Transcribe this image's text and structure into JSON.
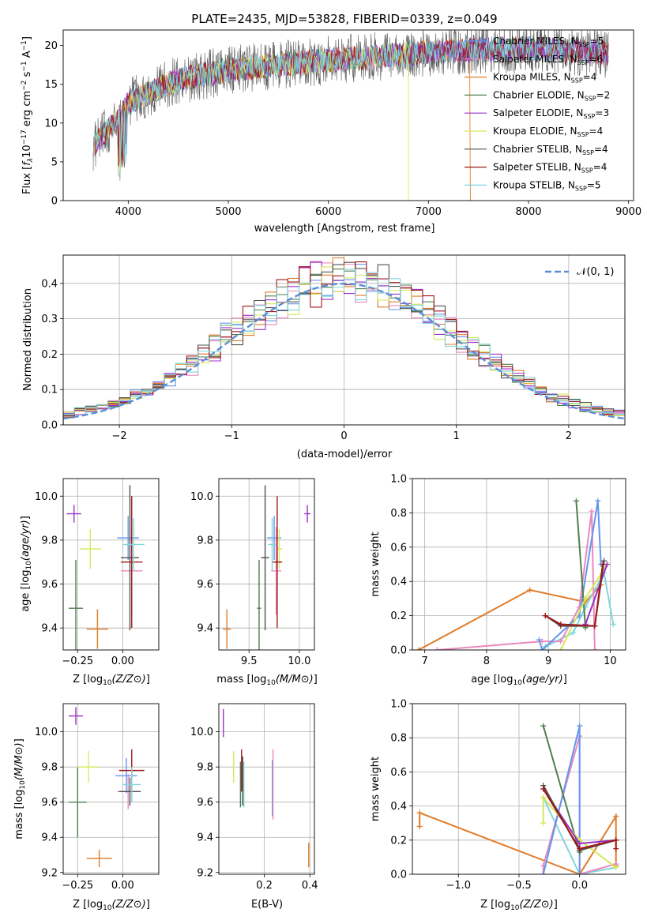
{
  "title": "PLATE=2435, MJD=53828, FIBERID=0339, z=0.049",
  "colors": {
    "chabrier_miles": "#6495ed",
    "salpeter_miles": "#e889c0",
    "kroupa_miles": "#e07b28",
    "chabrier_elodie": "#4f7f4f",
    "salpeter_elodie": "#9b30c8",
    "kroupa_elodie": "#d6e85a",
    "chabrier_stelib": "#505050",
    "salpeter_stelib": "#a01818",
    "kroupa_stelib": "#7fd6dc",
    "normal": "#5b8ed6"
  },
  "legend": [
    {
      "prefix": "Chabrier MILES, N",
      "sub": "SSP",
      "suffix": "=5",
      "color_key": "chabrier_miles"
    },
    {
      "prefix": "Salpeter MILES, N",
      "sub": "SSP",
      "suffix": "=6",
      "color_key": "salpeter_miles"
    },
    {
      "prefix": "Kroupa MILES, N",
      "sub": "SSP",
      "suffix": "=4",
      "color_key": "kroupa_miles"
    },
    {
      "prefix": "Chabrier ELODIE, N",
      "sub": "SSP",
      "suffix": "=2",
      "color_key": "chabrier_elodie"
    },
    {
      "prefix": "Salpeter ELODIE, N",
      "sub": "SSP",
      "suffix": "=3",
      "color_key": "salpeter_elodie"
    },
    {
      "prefix": "Kroupa ELODIE, N",
      "sub": "SSP",
      "suffix": "=4",
      "color_key": "kroupa_elodie"
    },
    {
      "prefix": "Chabrier STELIB, N",
      "sub": "SSP",
      "suffix": "=4",
      "color_key": "chabrier_stelib"
    },
    {
      "prefix": "Salpeter STELIB, N",
      "sub": "SSP",
      "suffix": "=4",
      "color_key": "salpeter_stelib"
    },
    {
      "prefix": "Kroupa STELIB, N",
      "sub": "SSP",
      "suffix": "=5",
      "color_key": "kroupa_stelib"
    }
  ],
  "chart_data": [
    {
      "id": "spectrum",
      "type": "line",
      "xlabel": "wavelength [Angstrom, rest frame]",
      "ylabel": "Flux [f_λ 10^-17 erg cm^-2 s^-1 A^-1]",
      "xlim": [
        3350,
        9050
      ],
      "ylim": [
        0,
        22
      ],
      "xticks": [
        4000,
        5000,
        6000,
        7000,
        8000,
        9000
      ],
      "yticks": [
        0,
        5,
        10,
        15,
        20
      ],
      "data_range": [
        3650,
        8800
      ],
      "continuum": [
        [
          3650,
          7.0
        ],
        [
          3900,
          10.5
        ],
        [
          4000,
          12.5
        ],
        [
          4300,
          14.5
        ],
        [
          4500,
          15.6
        ],
        [
          5000,
          16.8
        ],
        [
          5500,
          17.5
        ],
        [
          6000,
          18.1
        ],
        [
          6500,
          18.6
        ],
        [
          7000,
          19.1
        ],
        [
          7500,
          19.5
        ],
        [
          8000,
          19.6
        ],
        [
          8500,
          19.3
        ],
        [
          8800,
          19.0
        ]
      ],
      "dropouts": [
        {
          "color_key": "kroupa_elodie",
          "x": 6800
        },
        {
          "color_key": "kroupa_miles",
          "x": 7420
        }
      ],
      "grid": false,
      "legend_position": "upper right"
    },
    {
      "id": "residuals",
      "type": "histogram",
      "xlabel": "(data-model)/error",
      "ylabel": "Normed distribution",
      "xlim": [
        -2.5,
        2.5
      ],
      "ylim": [
        0,
        0.48
      ],
      "xticks": [
        -2,
        -1,
        0,
        1,
        2
      ],
      "yticks": [
        0.0,
        0.1,
        0.2,
        0.3,
        0.4
      ],
      "bin_width": 0.1,
      "overlay": {
        "name": "N(0,1)",
        "mean": 0,
        "sigma": 1
      },
      "grid": true,
      "legend_position": "upper right"
    },
    {
      "id": "age_vs_z",
      "type": "errorbar",
      "xlabel": "Z [log10(Z/Z⊙)]",
      "ylabel": "age [log10(age/yr)]",
      "xlim": [
        -0.33,
        0.2
      ],
      "ylim": [
        9.3,
        10.08
      ],
      "xticks": [
        -0.25,
        0.0
      ],
      "yticks": [
        9.4,
        9.6,
        9.8,
        10.0
      ],
      "points": [
        {
          "color_key": "chabrier_miles",
          "x": 0.03,
          "xerr": 0.06,
          "y": 9.81,
          "yerr": 0.1
        },
        {
          "color_key": "salpeter_miles",
          "x": 0.05,
          "xerr": 0.06,
          "y": 9.66,
          "yerr": 0.2
        },
        {
          "color_key": "kroupa_miles",
          "x": -0.14,
          "xerr": 0.06,
          "y": 9.395,
          "yerr": 0.09
        },
        {
          "color_key": "chabrier_elodie",
          "x": -0.26,
          "xerr": 0.04,
          "y": 9.49,
          "yerr": 0.22
        },
        {
          "color_key": "salpeter_elodie",
          "x": -0.27,
          "xerr": 0.04,
          "y": 9.92,
          "yerr": 0.04
        },
        {
          "color_key": "kroupa_elodie",
          "x": -0.18,
          "xerr": 0.06,
          "y": 9.76,
          "yerr": 0.09
        },
        {
          "color_key": "chabrier_stelib",
          "x": 0.04,
          "xerr": 0.05,
          "y": 9.72,
          "yerr": 0.33
        },
        {
          "color_key": "salpeter_stelib",
          "x": 0.05,
          "xerr": 0.06,
          "y": 9.7,
          "yerr": 0.3
        },
        {
          "color_key": "kroupa_stelib",
          "x": 0.06,
          "xerr": 0.06,
          "y": 9.78,
          "yerr": 0.12
        }
      ]
    },
    {
      "id": "age_vs_mass",
      "type": "errorbar",
      "xlabel": "mass [log10(M/M⊙)]",
      "xlim": [
        9.2,
        10.15
      ],
      "ylim": [
        9.3,
        10.08
      ],
      "xticks": [
        9.5,
        10.0
      ],
      "yticks": [
        9.4,
        9.6,
        9.8,
        10.0
      ],
      "points": [
        {
          "color_key": "chabrier_miles",
          "x": 9.75,
          "xerr": 0.07,
          "y": 9.81,
          "yerr": 0.1
        },
        {
          "color_key": "salpeter_miles",
          "x": 9.77,
          "xerr": 0.05,
          "y": 9.66,
          "yerr": 0.2
        },
        {
          "color_key": "kroupa_miles",
          "x": 9.28,
          "xerr": 0.04,
          "y": 9.395,
          "yerr": 0.09
        },
        {
          "color_key": "chabrier_elodie",
          "x": 9.6,
          "xerr": 0.02,
          "y": 9.49,
          "yerr": 0.22
        },
        {
          "color_key": "salpeter_elodie",
          "x": 10.08,
          "xerr": 0.03,
          "y": 9.92,
          "yerr": 0.04
        },
        {
          "color_key": "kroupa_elodie",
          "x": 9.8,
          "xerr": 0.03,
          "y": 9.76,
          "yerr": 0.09
        },
        {
          "color_key": "chabrier_stelib",
          "x": 9.66,
          "xerr": 0.04,
          "y": 9.72,
          "yerr": 0.33
        },
        {
          "color_key": "salpeter_stelib",
          "x": 9.78,
          "xerr": 0.05,
          "y": 9.7,
          "yerr": 0.3
        },
        {
          "color_key": "kroupa_stelib",
          "x": 9.73,
          "xerr": 0.04,
          "y": 9.78,
          "yerr": 0.12
        }
      ]
    },
    {
      "id": "massweight_vs_age",
      "type": "line",
      "xlabel": "age [log10(age/yr)]",
      "ylabel": "mass weight",
      "xlim": [
        6.8,
        10.25
      ],
      "ylim": [
        0,
        1.0
      ],
      "xticks": [
        7,
        8,
        9,
        10
      ],
      "yticks": [
        0.0,
        0.2,
        0.4,
        0.6,
        0.8,
        1.0
      ],
      "series": [
        {
          "color_key": "kroupa_miles",
          "x": [
            6.9,
            8.7,
            9.6,
            9.85
          ],
          "y": [
            0.0,
            0.35,
            0.28,
            0.38
          ]
        },
        {
          "color_key": "kroupa_stelib",
          "x": [
            8.95,
            9.4,
            9.6,
            9.9,
            10.05
          ],
          "y": [
            0.02,
            0.1,
            0.25,
            0.45,
            0.15
          ]
        },
        {
          "color_key": "salpeter_miles",
          "x": [
            7.2,
            8.9,
            9.2,
            9.5,
            9.7,
            9.75
          ],
          "y": [
            0.0,
            0.05,
            0.05,
            0.25,
            0.81,
            0.0
          ]
        },
        {
          "color_key": "chabrier_miles",
          "x": [
            8.85,
            8.9,
            9.5,
            9.8,
            9.85
          ],
          "y": [
            0.06,
            0.0,
            0.2,
            0.87,
            0.5
          ]
        },
        {
          "color_key": "chabrier_elodie",
          "x": [
            9.45,
            9.6
          ],
          "y": [
            0.87,
            0.13
          ]
        },
        {
          "color_key": "kroupa_elodie",
          "x": [
            9.2,
            9.6,
            9.95
          ],
          "y": [
            0.0,
            0.3,
            0.5
          ]
        },
        {
          "color_key": "salpeter_elodie",
          "x": [
            9.6,
            9.95
          ],
          "y": [
            0.15,
            0.5
          ]
        },
        {
          "color_key": "chabrier_stelib",
          "x": [
            8.95,
            9.2,
            9.75,
            9.9
          ],
          "y": [
            0.2,
            0.14,
            0.14,
            0.52
          ]
        },
        {
          "color_key": "salpeter_stelib",
          "x": [
            8.95,
            9.2,
            9.75,
            9.88
          ],
          "y": [
            0.2,
            0.15,
            0.14,
            0.5
          ]
        }
      ]
    },
    {
      "id": "mass_vs_z",
      "type": "errorbar",
      "xlabel": "Z [log10(Z/Z⊙)]",
      "ylabel": "mass [log10(M/M⊙)]",
      "xlim": [
        -0.33,
        0.2
      ],
      "ylim": [
        9.19,
        10.16
      ],
      "xticks": [
        -0.25,
        0.0
      ],
      "yticks": [
        9.2,
        9.4,
        9.6,
        9.8,
        10.0
      ],
      "points": [
        {
          "color_key": "chabrier_miles",
          "x": 0.02,
          "xerr": 0.06,
          "y": 9.75,
          "yerr": 0.1
        },
        {
          "color_key": "salpeter_miles",
          "x": 0.03,
          "xerr": 0.06,
          "y": 9.66,
          "yerr": 0.1
        },
        {
          "color_key": "kroupa_miles",
          "x": -0.13,
          "xerr": 0.07,
          "y": 9.28,
          "yerr": 0.05
        },
        {
          "color_key": "chabrier_elodie",
          "x": -0.25,
          "xerr": 0.05,
          "y": 9.6,
          "yerr": 0.2
        },
        {
          "color_key": "salpeter_elodie",
          "x": -0.26,
          "xerr": 0.04,
          "y": 10.09,
          "yerr": 0.05
        },
        {
          "color_key": "kroupa_elodie",
          "x": -0.19,
          "xerr": 0.06,
          "y": 9.8,
          "yerr": 0.09
        },
        {
          "color_key": "chabrier_stelib",
          "x": 0.04,
          "xerr": 0.06,
          "y": 9.66,
          "yerr": 0.08
        },
        {
          "color_key": "salpeter_stelib",
          "x": 0.05,
          "xerr": 0.07,
          "y": 9.78,
          "yerr": 0.12
        },
        {
          "color_key": "kroupa_stelib",
          "x": 0.05,
          "xerr": 0.05,
          "y": 9.7,
          "yerr": 0.1
        }
      ]
    },
    {
      "id": "mass_vs_ebv",
      "type": "errorbar",
      "xlabel": "E(B-V)",
      "xlim": [
        0.0,
        0.42
      ],
      "ylim": [
        9.19,
        10.16
      ],
      "xticks": [
        0.2,
        0.4
      ],
      "yticks": [
        9.2,
        9.4,
        9.6,
        9.8,
        10.0
      ],
      "points": [
        {
          "color_key": "chabrier_miles",
          "x": 0.235,
          "xerr": 0,
          "y": 9.68,
          "yerr": 0.16
        },
        {
          "color_key": "salpeter_miles",
          "x": 0.238,
          "xerr": 0,
          "y": 9.7,
          "yerr": 0.2
        },
        {
          "color_key": "kroupa_miles",
          "x": 0.395,
          "xerr": 0,
          "y": 9.3,
          "yerr": 0.07
        },
        {
          "color_key": "chabrier_elodie",
          "x": 0.095,
          "xerr": 0,
          "y": 9.7,
          "yerr": 0.13
        },
        {
          "color_key": "salpeter_elodie",
          "x": 0.02,
          "xerr": 0,
          "y": 10.05,
          "yerr": 0.08
        },
        {
          "color_key": "kroupa_elodie",
          "x": 0.065,
          "xerr": 0,
          "y": 9.8,
          "yerr": 0.09
        },
        {
          "color_key": "chabrier_stelib",
          "x": 0.105,
          "xerr": 0,
          "y": 9.72,
          "yerr": 0.14
        },
        {
          "color_key": "salpeter_stelib",
          "x": 0.1,
          "xerr": 0,
          "y": 9.78,
          "yerr": 0.12
        },
        {
          "color_key": "kroupa_stelib",
          "x": 0.11,
          "xerr": 0,
          "y": 9.7,
          "yerr": 0.13
        }
      ]
    },
    {
      "id": "massweight_vs_z",
      "type": "line",
      "xlabel": "Z [log10(Z/Z⊙)]",
      "ylabel": "mass weight",
      "xlim": [
        -1.38,
        0.38
      ],
      "ylim": [
        0,
        1.0
      ],
      "xticks": [
        -1.0,
        -0.5,
        0.0
      ],
      "yticks": [
        0.0,
        0.2,
        0.4,
        0.6,
        0.8,
        1.0
      ],
      "series": [
        {
          "color_key": "kroupa_miles",
          "x": [
            -1.32,
            -1.32,
            0.0,
            0.3,
            0.3
          ],
          "y": [
            0.28,
            0.36,
            0.0,
            0.34,
            0.05
          ]
        },
        {
          "color_key": "kroupa_stelib",
          "x": [
            -0.3,
            0.0,
            0.3
          ],
          "y": [
            0.45,
            0.0,
            0.04
          ]
        },
        {
          "color_key": "salpeter_miles",
          "x": [
            -0.3,
            -0.3,
            0.0,
            0.0,
            0.3
          ],
          "y": [
            0.0,
            0.05,
            0.81,
            0.0,
            0.06
          ]
        },
        {
          "color_key": "chabrier_miles",
          "x": [
            -0.3,
            0.0,
            0.0
          ],
          "y": [
            0.0,
            0.87,
            0.0
          ]
        },
        {
          "color_key": "chabrier_elodie",
          "x": [
            -0.3,
            0.0
          ],
          "y": [
            0.87,
            0.13
          ]
        },
        {
          "color_key": "kroupa_elodie",
          "x": [
            -0.3,
            -0.3,
            0.0,
            0.3
          ],
          "y": [
            0.3,
            0.45,
            0.2,
            0.04
          ]
        },
        {
          "color_key": "salpeter_elodie",
          "x": [
            -0.3,
            0.0,
            0.3
          ],
          "y": [
            0.5,
            0.18,
            0.2
          ]
        },
        {
          "color_key": "chabrier_stelib",
          "x": [
            -0.3,
            0.0,
            0.0,
            0.3
          ],
          "y": [
            0.52,
            0.14,
            0.14,
            0.2
          ]
        },
        {
          "color_key": "salpeter_stelib",
          "x": [
            -0.3,
            0.0,
            0.3,
            0.3
          ],
          "y": [
            0.5,
            0.15,
            0.2,
            0.15
          ]
        }
      ]
    }
  ]
}
